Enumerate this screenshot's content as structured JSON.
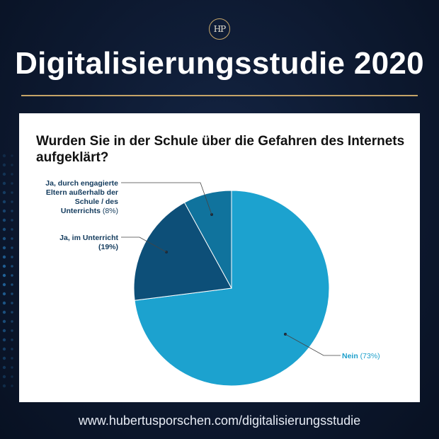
{
  "logo": {
    "text": "HP",
    "icon": "hp-monogram-logo"
  },
  "headline": "Digitalisierungsstudie 2020",
  "footer_url": "www.hubertusporschen.com/digitalisierungsstudie",
  "colors": {
    "background": "#0d1930",
    "accent_rule": "#c5a468"
  },
  "chart_data": {
    "type": "pie",
    "title": "Wurden Sie in der Schule über die Gefahren des Internets aufgeklärt?",
    "slices": [
      {
        "label": "Nein",
        "percent_label": "(73%)",
        "value": 73,
        "color": "#1ca2cf"
      },
      {
        "label": "Ja, im Unterricht",
        "percent_label": "(19%)",
        "value": 19,
        "color": "#0d4f78"
      },
      {
        "label": "Ja, durch engagierte Eltern außerhalb der Schule / des Unterrichts",
        "label_lines": [
          "Ja, durch engagierte",
          "Eltern außerhalb der",
          "Schule / des",
          "Unterrichts"
        ],
        "percent_label": "(8%)",
        "value": 8,
        "color": "#10739d"
      }
    ],
    "legend": "callout labels beside slices"
  }
}
